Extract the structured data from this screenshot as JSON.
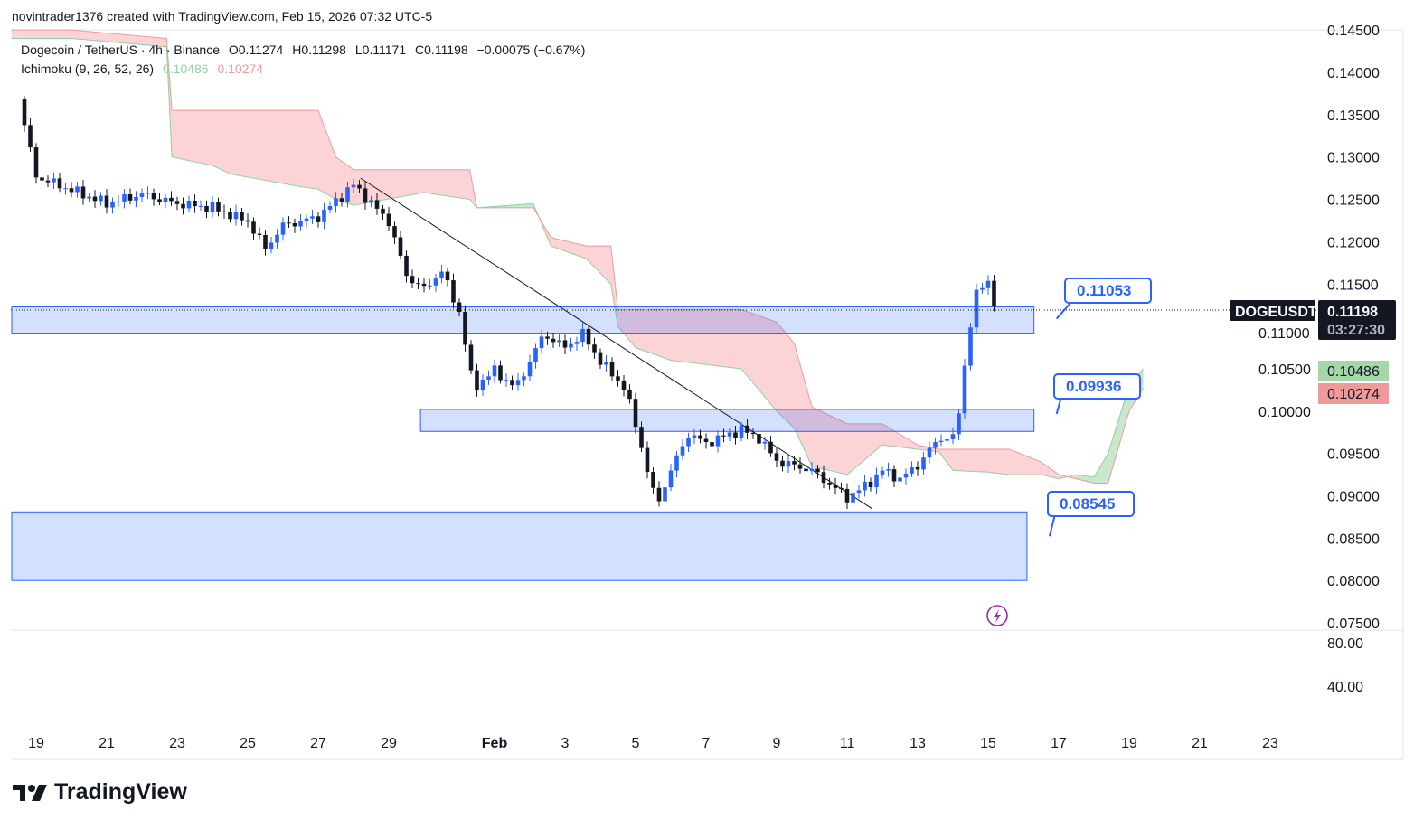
{
  "attribution": "novintrader1376 created with TradingView.com, Feb 15, 2026 07:32 UTC-5",
  "legend": {
    "symbol": "Dogecoin / TetherUS · 4h · Binance",
    "open": "O0.11274",
    "high": "H0.11298",
    "low": "L0.11171",
    "close": "C0.11198",
    "change": "−0.00075 (−0.67%)",
    "indicator": "Ichimoku (9, 26, 52, 26)",
    "ind_a": "0.10486",
    "ind_b": "0.10274"
  },
  "price_axis": {
    "ticker": "DOGEUSDT",
    "last_price": "0.11198",
    "countdown": "03:27:30",
    "span_a_tag": "0.10486",
    "span_b_tag": "0.10274"
  },
  "oscillator_axis": [
    "80.00",
    "40.00"
  ],
  "branding": "TradingView",
  "colors": {
    "up": "#2962ff",
    "down": "#131722",
    "span_a": "#8fd19e",
    "span_b": "#f09a9a",
    "zone": "#2962ff"
  },
  "chart_data": {
    "type": "candlestick",
    "symbol": "DOGEUSDT",
    "interval": "4h",
    "ylim": [
      0.075,
      0.145
    ],
    "y_ticks": [
      "0.14500",
      "0.14000",
      "0.13500",
      "0.13000",
      "0.12500",
      "0.12000",
      "0.11500",
      "0.11000",
      "0.10500",
      "0.10000",
      "0.09500",
      "0.09000",
      "0.08500",
      "0.08000",
      "0.07500"
    ],
    "y_tick_values": [
      0.145,
      0.14,
      0.135,
      0.13,
      0.125,
      0.12,
      0.115,
      0.11,
      0.105,
      0.1,
      0.095,
      0.09,
      0.085,
      0.08,
      0.075
    ],
    "x_ticks": [
      {
        "label": "19",
        "day": 0
      },
      {
        "label": "21",
        "day": 2
      },
      {
        "label": "23",
        "day": 4
      },
      {
        "label": "25",
        "day": 6
      },
      {
        "label": "27",
        "day": 8
      },
      {
        "label": "29",
        "day": 10
      },
      {
        "label": "Feb",
        "day": 13
      },
      {
        "label": "3",
        "day": 15
      },
      {
        "label": "5",
        "day": 17
      },
      {
        "label": "7",
        "day": 19
      },
      {
        "label": "9",
        "day": 21
      },
      {
        "label": "11",
        "day": 23
      },
      {
        "label": "13",
        "day": 25
      },
      {
        "label": "15",
        "day": 27
      },
      {
        "label": "17",
        "day": 29
      },
      {
        "label": "19",
        "day": 31
      },
      {
        "label": "21",
        "day": 33
      },
      {
        "label": "23",
        "day": 35
      }
    ],
    "price_path_day_close": [
      [
        -0.5,
        0.1368
      ],
      [
        0,
        0.1277
      ],
      [
        1,
        0.1261
      ],
      [
        2,
        0.1245
      ],
      [
        3,
        0.1256
      ],
      [
        4,
        0.1245
      ],
      [
        5,
        0.124
      ],
      [
        6,
        0.1224
      ],
      [
        6.5,
        0.1192
      ],
      [
        7,
        0.1219
      ],
      [
        8,
        0.1229
      ],
      [
        9,
        0.1267
      ],
      [
        10,
        0.1224
      ],
      [
        10.5,
        0.116
      ],
      [
        11,
        0.1144
      ],
      [
        11.5,
        0.1165
      ],
      [
        12,
        0.1117
      ],
      [
        12.4,
        0.1027
      ],
      [
        13,
        0.1048
      ],
      [
        13.6,
        0.1027
      ],
      [
        14,
        0.1059
      ],
      [
        14.4,
        0.1091
      ],
      [
        15,
        0.1075
      ],
      [
        15.5,
        0.1091
      ],
      [
        16,
        0.1059
      ],
      [
        16.7,
        0.1027
      ],
      [
        17,
        0.0984
      ],
      [
        17.6,
        0.0888
      ],
      [
        18,
        0.093
      ],
      [
        18.5,
        0.0973
      ],
      [
        19,
        0.0962
      ],
      [
        20,
        0.0978
      ],
      [
        20.5,
        0.0968
      ],
      [
        21,
        0.0941
      ],
      [
        22,
        0.093
      ],
      [
        23,
        0.0898
      ],
      [
        23.6,
        0.0914
      ],
      [
        24,
        0.093
      ],
      [
        24.5,
        0.092
      ],
      [
        25,
        0.0936
      ],
      [
        25.6,
        0.0968
      ],
      [
        26,
        0.0968
      ],
      [
        26.2,
        0.1005
      ],
      [
        26.4,
        0.108
      ],
      [
        26.7,
        0.1144
      ],
      [
        27,
        0.1154
      ],
      [
        27.2,
        0.1122
      ]
    ],
    "ichimoku_cloud_day_a_b": [
      [
        -0.7,
        0.144,
        0.145
      ],
      [
        1,
        0.144,
        0.145
      ],
      [
        3.7,
        0.143,
        0.144
      ],
      [
        3.85,
        0.13,
        0.1355
      ],
      [
        5,
        0.129,
        0.1355
      ],
      [
        5.5,
        0.128,
        0.1355
      ],
      [
        7.5,
        0.1265,
        0.1355
      ],
      [
        8,
        0.1262,
        0.1355
      ],
      [
        8.5,
        0.125,
        0.13
      ],
      [
        9,
        0.1243,
        0.1285
      ],
      [
        11,
        0.1258,
        0.1285
      ],
      [
        12.3,
        0.125,
        0.1285
      ],
      [
        12.5,
        0.124,
        0.124
      ],
      [
        14.1,
        0.1245,
        0.124
      ],
      [
        14.6,
        0.1195,
        0.1205
      ],
      [
        15.6,
        0.118,
        0.1195
      ],
      [
        16.3,
        0.115,
        0.1195
      ],
      [
        16.5,
        0.11,
        0.112
      ],
      [
        17,
        0.1075,
        0.112
      ],
      [
        18,
        0.106,
        0.112
      ],
      [
        19,
        0.1055,
        0.112
      ],
      [
        20,
        0.105,
        0.112
      ],
      [
        21,
        0.1,
        0.1105
      ],
      [
        21.5,
        0.098,
        0.108
      ],
      [
        22,
        0.0935,
        0.1005
      ],
      [
        23,
        0.0925,
        0.0985
      ],
      [
        24,
        0.096,
        0.0985
      ],
      [
        25,
        0.0955,
        0.096
      ],
      [
        25.6,
        0.0952,
        0.0955
      ],
      [
        26,
        0.093,
        0.0955
      ],
      [
        27,
        0.0928,
        0.0955
      ],
      [
        27.6,
        0.0925,
        0.0955
      ],
      [
        28.5,
        0.0925,
        0.094
      ],
      [
        29,
        0.092,
        0.0925
      ],
      [
        29.5,
        0.0925,
        0.092
      ],
      [
        30,
        0.0922,
        0.0915
      ],
      [
        30.4,
        0.095,
        0.0915
      ],
      [
        31,
        0.103,
        0.1
      ],
      [
        31.4,
        0.105,
        0.1027
      ]
    ],
    "zones": [
      {
        "from_day": -0.7,
        "to_day": 28.3,
        "top": 0.1123,
        "bottom": 0.1092,
        "label": "0.11053"
      },
      {
        "from_day": 10.9,
        "to_day": 28.3,
        "top": 0.1002,
        "bottom": 0.0976,
        "label": "0.09936"
      },
      {
        "from_day": -0.7,
        "to_day": 28.1,
        "top": 0.0881,
        "bottom": 0.08,
        "label": "0.08545"
      }
    ],
    "trendline": [
      [
        9.2,
        0.1275
      ],
      [
        23.7,
        0.0885
      ]
    ],
    "last_price": 0.11198
  }
}
